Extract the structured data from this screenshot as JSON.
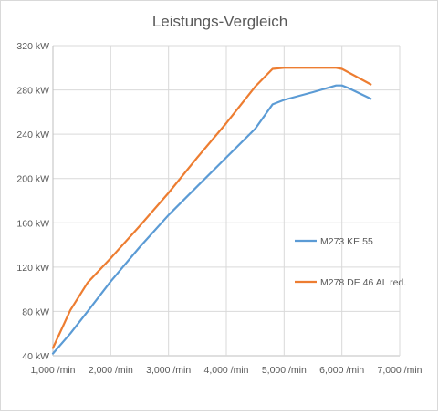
{
  "chart_data": {
    "type": "line",
    "title": "Leistungs-Vergleich",
    "xlabel": "",
    "ylabel": "",
    "x_unit_suffix": " /min",
    "y_unit_suffix": " kW",
    "xlim": [
      1000,
      7000
    ],
    "ylim": [
      40,
      320
    ],
    "x_ticks": [
      "1,000 /min",
      "2,000 /min",
      "3,000 /min",
      "4,000 /min",
      "5,000 /min",
      "6,000 /min",
      "7,000 /min"
    ],
    "y_ticks": [
      "40 kW",
      "80 kW",
      "120 kW",
      "160 kW",
      "200 kW",
      "240 kW",
      "280 kW",
      "320 kW"
    ],
    "x_tick_values": [
      1000,
      2000,
      3000,
      4000,
      5000,
      6000,
      7000
    ],
    "y_tick_values": [
      40,
      80,
      120,
      160,
      200,
      240,
      280,
      320
    ],
    "grid": "vertical-and-horizontal",
    "legend_position": "right",
    "series": [
      {
        "name": "M273 KE 55",
        "color": "#5B9BD5",
        "x": [
          1000,
          1300,
          1600,
          2000,
          2500,
          3000,
          3500,
          4000,
          4500,
          4800,
          5000,
          5500,
          5900,
          6000,
          6100,
          6500
        ],
        "y": [
          42,
          60,
          80,
          107,
          138,
          167,
          193,
          219,
          245,
          267,
          271,
          278,
          284,
          284,
          282,
          272
        ]
      },
      {
        "name": "M278 DE 46 AL red.",
        "color": "#ED7D31",
        "x": [
          1000,
          1300,
          1600,
          2000,
          2500,
          3000,
          3500,
          4000,
          4500,
          4800,
          5000,
          5500,
          5900,
          6000,
          6500
        ],
        "y": [
          47,
          81,
          106,
          128,
          157,
          187,
          219,
          250,
          283,
          299,
          300,
          300,
          300,
          299,
          285
        ]
      }
    ]
  }
}
